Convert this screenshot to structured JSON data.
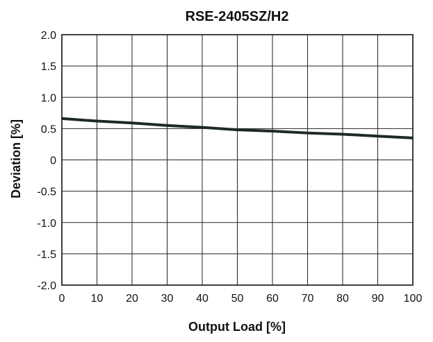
{
  "chart_data": {
    "type": "line",
    "title": "RSE-2405SZ/H2",
    "xlabel": "Output Load [%]",
    "ylabel": "Deviation [%]",
    "xlim": [
      0,
      100
    ],
    "ylim": [
      -2.0,
      2.0
    ],
    "grid": true,
    "x_ticks": [
      0,
      10,
      20,
      30,
      40,
      50,
      60,
      70,
      80,
      90,
      100
    ],
    "x_tick_labels": [
      "0",
      "10",
      "20",
      "30",
      "40",
      "50",
      "60",
      "70",
      "80",
      "90",
      "100"
    ],
    "y_ticks": [
      2.0,
      1.5,
      1.0,
      0.5,
      0,
      -0.5,
      -1.0,
      -1.5,
      -2.0
    ],
    "y_tick_labels": [
      "2.0",
      "1.5",
      "1.0",
      "0.5",
      "0",
      "-0.5",
      "-1.0",
      "-1.5",
      "-2.0"
    ],
    "series": [
      {
        "color": "#1f2a24",
        "x": [
          0,
          10,
          20,
          30,
          40,
          50,
          60,
          70,
          80,
          90,
          100
        ],
        "y": [
          0.66,
          0.62,
          0.59,
          0.55,
          0.52,
          0.48,
          0.46,
          0.43,
          0.41,
          0.38,
          0.35
        ]
      }
    ]
  }
}
